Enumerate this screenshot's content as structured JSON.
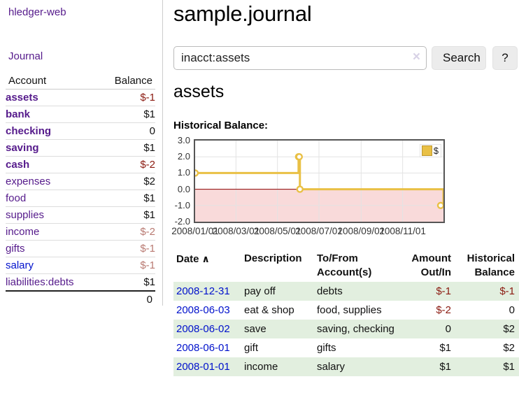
{
  "nav": {
    "brand": "hledger-web",
    "journal": "Journal"
  },
  "header": {
    "title": "sample.journal"
  },
  "search": {
    "value": "inacct:assets",
    "clear_icon": "×",
    "button_label": "Search",
    "help_label": "?"
  },
  "account_page": {
    "heading": "assets",
    "chart_title": "Historical Balance:"
  },
  "sidebar": {
    "accounts_header": {
      "account": "Account",
      "balance": "Balance"
    },
    "accounts": [
      {
        "name": "assets",
        "balance": "$-1",
        "level": 1,
        "bold": true,
        "neg": "strong"
      },
      {
        "name": "bank",
        "balance": "$1",
        "level": 2,
        "bold": true
      },
      {
        "name": "checking",
        "balance": "0",
        "level": 3,
        "bold": true
      },
      {
        "name": "saving",
        "balance": "$1",
        "level": 3,
        "bold": true
      },
      {
        "name": "cash",
        "balance": "$-2",
        "level": 2,
        "bold": true,
        "neg": "strong"
      },
      {
        "name": "expenses",
        "balance": "$2",
        "level": 1
      },
      {
        "name": "food",
        "balance": "$1",
        "level": 2
      },
      {
        "name": "supplies",
        "balance": "$1",
        "level": 2
      },
      {
        "name": "income",
        "balance": "$-2",
        "level": 1,
        "neg": "muted"
      },
      {
        "name": "gifts",
        "balance": "$-1",
        "level": 2,
        "neg": "muted"
      },
      {
        "name": "salary",
        "balance": "$-1",
        "level": 2,
        "neg": "muted",
        "unvisited": true
      },
      {
        "name": "liabilities:debts",
        "balance": "$1",
        "level": 1
      }
    ],
    "total": "0"
  },
  "chart_data": {
    "type": "line",
    "step": true,
    "title": "Historical Balance",
    "legend_label": "$",
    "legend_position": "top-right",
    "x": [
      "2008-01-01",
      "2008-06-01",
      "2008-06-02",
      "2008-06-03",
      "2008-12-31"
    ],
    "y": [
      1,
      2,
      2,
      0,
      -1
    ],
    "xlim": [
      "2008-01-01",
      "2008-12-31"
    ],
    "ylim": [
      -2,
      3
    ],
    "yticks": [
      "3.0",
      "2.0",
      "1.0",
      "0.0",
      "-1.0",
      "-2.0"
    ],
    "xticks": [
      "2008/01/01",
      "2008/03/01",
      "2008/05/01",
      "2008/07/01",
      "2008/09/01",
      "2008/11/01"
    ],
    "grid": true,
    "line_color": "#e9c045",
    "marker": "open-circle",
    "negative_region_fill": "#f9dada",
    "zero_line_color": "#8b0000"
  },
  "register": {
    "columns": [
      {
        "label": "Date",
        "sort_icon": "∧"
      },
      {
        "label": "Description"
      },
      {
        "label": "To/From Account(s)"
      },
      {
        "label": "Amount Out/In"
      },
      {
        "label": "Historical Balance"
      }
    ],
    "rows": [
      {
        "date": "2008-12-31",
        "description": "pay off",
        "accounts": "debts",
        "amount": "$-1",
        "amount_neg": true,
        "balance": "$-1",
        "balance_neg": true
      },
      {
        "date": "2008-06-03",
        "description": "eat & shop",
        "accounts": "food, supplies",
        "amount": "$-2",
        "amount_neg": true,
        "balance": "0",
        "balance_neg": false
      },
      {
        "date": "2008-06-02",
        "description": "save",
        "accounts": "saving, checking",
        "amount": "0",
        "amount_neg": false,
        "balance": "$2",
        "balance_neg": false
      },
      {
        "date": "2008-06-01",
        "description": "gift",
        "accounts": "gifts",
        "amount": "$1",
        "amount_neg": false,
        "balance": "$2",
        "balance_neg": false
      },
      {
        "date": "2008-01-01",
        "description": "income",
        "accounts": "salary",
        "amount": "$1",
        "amount_neg": false,
        "balance": "$1",
        "balance_neg": false
      }
    ]
  },
  "colors": {
    "link_visited_purple": "#551a8b",
    "link_blue": "#0011cc",
    "negative_strong": "#8b1a10",
    "negative_muted": "#b97a72",
    "row_stripe_green": "#e2efdf",
    "chart_line_yellow": "#e9c045",
    "chart_negative_fill": "#f9dada",
    "zero_line_red": "#8b0000"
  }
}
